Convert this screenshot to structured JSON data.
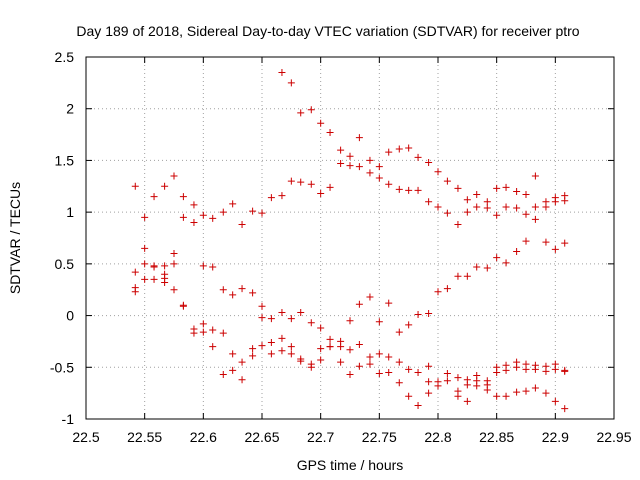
{
  "chart_data": {
    "type": "scatter",
    "title": "Day 189 of 2018, Sidereal Day-to-day VTEC variation (SDTVAR) for receiver ptro",
    "xlabel": "GPS time / hours",
    "ylabel": "SDTVAR / TECUs",
    "xlim": [
      22.5,
      22.95
    ],
    "ylim": [
      -1,
      2.5
    ],
    "xticks": [
      22.5,
      22.55,
      22.6,
      22.65,
      22.7,
      22.75,
      22.8,
      22.85,
      22.9,
      22.95
    ],
    "xtick_labels": [
      "22.5",
      "22.55",
      "22.6",
      "22.65",
      "22.7",
      "22.75",
      "22.8",
      "22.85",
      "22.9",
      "22.95"
    ],
    "yticks": [
      -1,
      -0.5,
      0,
      0.5,
      1,
      1.5,
      2,
      2.5
    ],
    "ytick_labels": [
      "-1",
      "-0.5",
      "0",
      "0.5",
      "1",
      "1.5",
      "2",
      "2.5"
    ],
    "grid": true,
    "marker": "+",
    "color": "#cc0000",
    "series": [
      {
        "name": "SDTVAR",
        "points": [
          [
            22.542,
            1.25
          ],
          [
            22.542,
            0.42
          ],
          [
            22.542,
            0.27
          ],
          [
            22.542,
            0.23
          ],
          [
            22.55,
            0.95
          ],
          [
            22.55,
            0.65
          ],
          [
            22.55,
            0.5
          ],
          [
            22.55,
            0.35
          ],
          [
            22.558,
            1.15
          ],
          [
            22.558,
            0.48
          ],
          [
            22.558,
            0.47
          ],
          [
            22.558,
            0.35
          ],
          [
            22.567,
            1.25
          ],
          [
            22.567,
            0.48
          ],
          [
            22.567,
            0.4
          ],
          [
            22.567,
            0.36
          ],
          [
            22.567,
            0.32
          ],
          [
            22.575,
            1.35
          ],
          [
            22.575,
            0.6
          ],
          [
            22.575,
            0.5
          ],
          [
            22.575,
            0.25
          ],
          [
            22.583,
            1.15
          ],
          [
            22.583,
            0.95
          ],
          [
            22.583,
            0.1
          ],
          [
            22.583,
            0.09
          ],
          [
            22.592,
            1.07
          ],
          [
            22.592,
            0.9
          ],
          [
            22.592,
            -0.13
          ],
          [
            22.592,
            -0.17
          ],
          [
            22.6,
            0.97
          ],
          [
            22.6,
            0.48
          ],
          [
            22.6,
            -0.08
          ],
          [
            22.6,
            -0.16
          ],
          [
            22.608,
            0.94
          ],
          [
            22.608,
            0.47
          ],
          [
            22.608,
            -0.14
          ],
          [
            22.608,
            -0.3
          ],
          [
            22.617,
            1.0
          ],
          [
            22.617,
            0.25
          ],
          [
            22.617,
            -0.17
          ],
          [
            22.617,
            -0.57
          ],
          [
            22.625,
            1.08
          ],
          [
            22.625,
            0.2
          ],
          [
            22.625,
            -0.37
          ],
          [
            22.625,
            -0.53
          ],
          [
            22.633,
            0.88
          ],
          [
            22.633,
            0.26
          ],
          [
            22.633,
            -0.45
          ],
          [
            22.633,
            -0.62
          ],
          [
            22.642,
            1.01
          ],
          [
            22.642,
            0.22
          ],
          [
            22.642,
            -0.32
          ],
          [
            22.642,
            -0.39
          ],
          [
            22.65,
            0.99
          ],
          [
            22.65,
            0.09
          ],
          [
            22.65,
            -0.02
          ],
          [
            22.65,
            -0.29
          ],
          [
            22.658,
            1.14
          ],
          [
            22.658,
            -0.03
          ],
          [
            22.658,
            -0.26
          ],
          [
            22.658,
            -0.37
          ],
          [
            22.667,
            2.35
          ],
          [
            22.667,
            1.16
          ],
          [
            22.667,
            0.03
          ],
          [
            22.667,
            -0.22
          ],
          [
            22.667,
            -0.34
          ],
          [
            22.675,
            2.25
          ],
          [
            22.675,
            1.3
          ],
          [
            22.675,
            -0.03
          ],
          [
            22.675,
            -0.3
          ],
          [
            22.675,
            -0.37
          ],
          [
            22.683,
            1.96
          ],
          [
            22.683,
            1.29
          ],
          [
            22.683,
            0.03
          ],
          [
            22.683,
            -0.42
          ],
          [
            22.683,
            -0.44
          ],
          [
            22.692,
            1.99
          ],
          [
            22.692,
            1.27
          ],
          [
            22.692,
            -0.07
          ],
          [
            22.692,
            -0.47
          ],
          [
            22.692,
            -0.5
          ],
          [
            22.7,
            1.86
          ],
          [
            22.7,
            1.18
          ],
          [
            22.7,
            -0.12
          ],
          [
            22.7,
            -0.32
          ],
          [
            22.7,
            -0.43
          ],
          [
            22.708,
            1.77
          ],
          [
            22.708,
            1.24
          ],
          [
            22.708,
            -0.23
          ],
          [
            22.708,
            -0.3
          ],
          [
            22.708,
            -0.3
          ],
          [
            22.717,
            1.6
          ],
          [
            22.717,
            1.47
          ],
          [
            22.717,
            -0.25
          ],
          [
            22.717,
            -0.3
          ],
          [
            22.717,
            -0.45
          ],
          [
            22.725,
            1.54
          ],
          [
            22.725,
            1.45
          ],
          [
            22.725,
            -0.05
          ],
          [
            22.725,
            -0.33
          ],
          [
            22.725,
            -0.57
          ],
          [
            22.733,
            1.72
          ],
          [
            22.733,
            1.44
          ],
          [
            22.733,
            0.11
          ],
          [
            22.733,
            -0.28
          ],
          [
            22.733,
            -0.49
          ],
          [
            22.742,
            1.5
          ],
          [
            22.742,
            1.38
          ],
          [
            22.742,
            0.18
          ],
          [
            22.742,
            -0.4
          ],
          [
            22.742,
            -0.47
          ],
          [
            22.75,
            1.44
          ],
          [
            22.75,
            1.33
          ],
          [
            22.75,
            -0.06
          ],
          [
            22.75,
            -0.37
          ],
          [
            22.75,
            -0.56
          ],
          [
            22.758,
            1.58
          ],
          [
            22.758,
            1.27
          ],
          [
            22.758,
            0.12
          ],
          [
            22.758,
            -0.4
          ],
          [
            22.758,
            -0.55
          ],
          [
            22.767,
            1.61
          ],
          [
            22.767,
            1.22
          ],
          [
            22.767,
            -0.16
          ],
          [
            22.767,
            -0.45
          ],
          [
            22.767,
            -0.65
          ],
          [
            22.775,
            1.62
          ],
          [
            22.775,
            1.21
          ],
          [
            22.775,
            -0.09
          ],
          [
            22.775,
            -0.52
          ],
          [
            22.775,
            -0.78
          ],
          [
            22.783,
            1.53
          ],
          [
            22.783,
            1.21
          ],
          [
            22.783,
            0.01
          ],
          [
            22.783,
            -0.55
          ],
          [
            22.783,
            -0.87
          ],
          [
            22.792,
            1.48
          ],
          [
            22.792,
            1.1
          ],
          [
            22.792,
            0.02
          ],
          [
            22.792,
            -0.49
          ],
          [
            22.792,
            -0.64
          ],
          [
            22.792,
            -0.75
          ],
          [
            22.8,
            1.39
          ],
          [
            22.8,
            1.05
          ],
          [
            22.8,
            0.23
          ],
          [
            22.8,
            -0.64
          ],
          [
            22.8,
            -0.68
          ],
          [
            22.808,
            1.3
          ],
          [
            22.808,
            0.99
          ],
          [
            22.808,
            0.26
          ],
          [
            22.808,
            -0.56
          ],
          [
            22.808,
            -0.63
          ],
          [
            22.817,
            1.23
          ],
          [
            22.817,
            0.88
          ],
          [
            22.817,
            0.38
          ],
          [
            22.817,
            -0.6
          ],
          [
            22.817,
            -0.73
          ],
          [
            22.817,
            -0.78
          ],
          [
            22.825,
            1.12
          ],
          [
            22.825,
            1.0
          ],
          [
            22.825,
            0.38
          ],
          [
            22.825,
            -0.62
          ],
          [
            22.825,
            -0.67
          ],
          [
            22.825,
            -0.83
          ],
          [
            22.833,
            1.17
          ],
          [
            22.833,
            1.05
          ],
          [
            22.833,
            0.47
          ],
          [
            22.833,
            -0.58
          ],
          [
            22.833,
            -0.63
          ],
          [
            22.833,
            -0.68
          ],
          [
            22.842,
            1.1
          ],
          [
            22.842,
            1.04
          ],
          [
            22.842,
            0.46
          ],
          [
            22.842,
            -0.63
          ],
          [
            22.842,
            -0.67
          ],
          [
            22.842,
            -0.72
          ],
          [
            22.85,
            1.23
          ],
          [
            22.85,
            0.97
          ],
          [
            22.85,
            0.56
          ],
          [
            22.85,
            -0.5
          ],
          [
            22.85,
            -0.55
          ],
          [
            22.85,
            -0.78
          ],
          [
            22.858,
            1.24
          ],
          [
            22.858,
            1.05
          ],
          [
            22.858,
            0.51
          ],
          [
            22.858,
            -0.48
          ],
          [
            22.858,
            -0.53
          ],
          [
            22.858,
            -0.78
          ],
          [
            22.867,
            1.2
          ],
          [
            22.867,
            1.04
          ],
          [
            22.867,
            0.62
          ],
          [
            22.867,
            -0.45
          ],
          [
            22.867,
            -0.5
          ],
          [
            22.867,
            -0.74
          ],
          [
            22.875,
            1.17
          ],
          [
            22.875,
            0.98
          ],
          [
            22.875,
            0.72
          ],
          [
            22.875,
            -0.47
          ],
          [
            22.875,
            -0.52
          ],
          [
            22.875,
            -0.73
          ],
          [
            22.883,
            1.35
          ],
          [
            22.883,
            1.05
          ],
          [
            22.883,
            0.93
          ],
          [
            22.883,
            -0.48
          ],
          [
            22.883,
            -0.52
          ],
          [
            22.883,
            -0.7
          ],
          [
            22.892,
            1.1
          ],
          [
            22.892,
            1.05
          ],
          [
            22.892,
            0.71
          ],
          [
            22.892,
            -0.49
          ],
          [
            22.892,
            -0.54
          ],
          [
            22.892,
            -0.75
          ],
          [
            22.9,
            1.14
          ],
          [
            22.9,
            1.1
          ],
          [
            22.9,
            0.64
          ],
          [
            22.9,
            -0.47
          ],
          [
            22.9,
            -0.52
          ],
          [
            22.9,
            -0.83
          ],
          [
            22.908,
            1.16
          ],
          [
            22.908,
            1.11
          ],
          [
            22.908,
            0.7
          ],
          [
            22.908,
            -0.53
          ],
          [
            22.908,
            -0.54
          ],
          [
            22.908,
            -0.9
          ]
        ]
      }
    ]
  }
}
